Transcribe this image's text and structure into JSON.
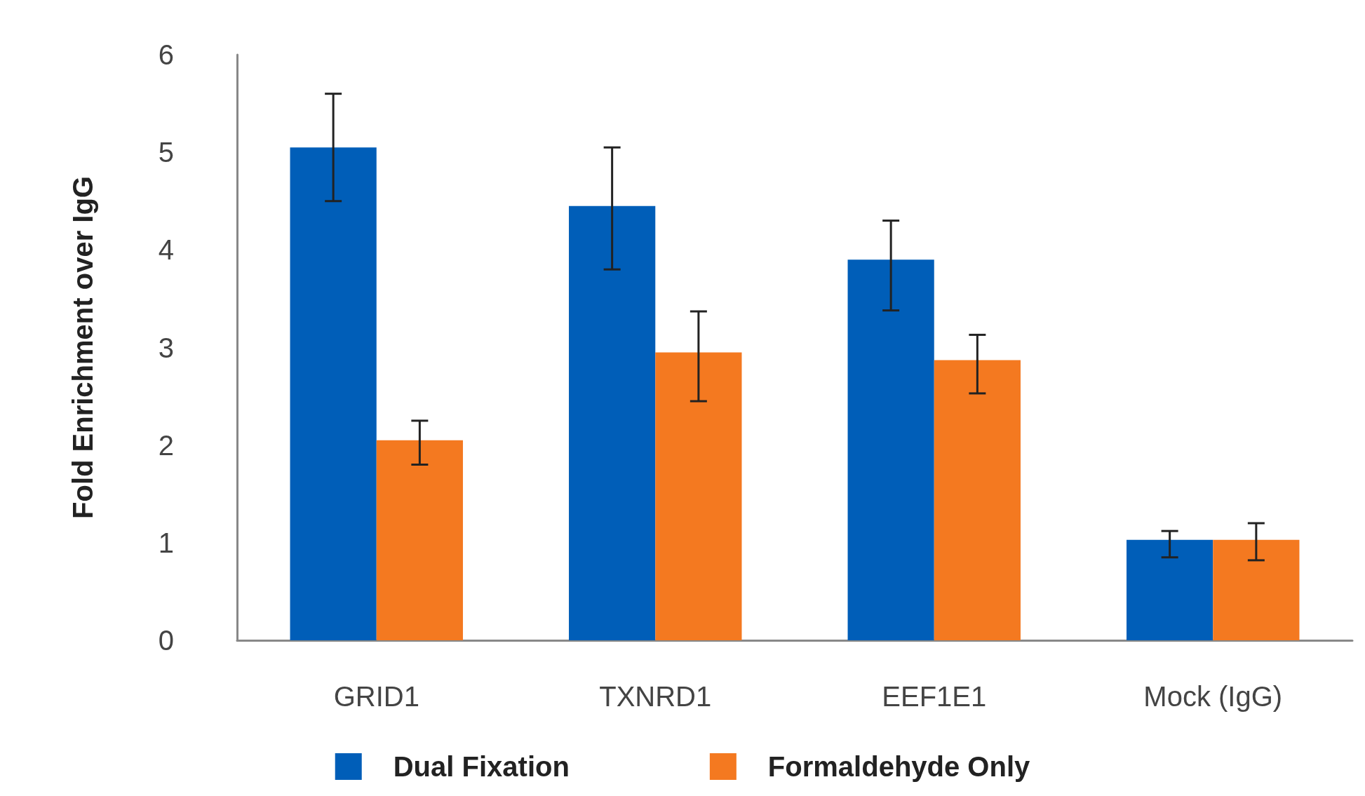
{
  "chart_data": {
    "type": "bar",
    "ylabel": "Fold Enrichment over IgG",
    "categories": [
      "GRID1",
      "TXNRD1",
      "EEF1E1",
      "Mock (IgG)"
    ],
    "series": [
      {
        "name": "Dual Fixation",
        "color": "#005eb8",
        "values": [
          5.05,
          4.45,
          3.9,
          1.03
        ],
        "errors": [
          [
            4.5,
            5.6
          ],
          [
            3.8,
            5.05
          ],
          [
            3.38,
            4.3
          ],
          [
            0.85,
            1.12
          ]
        ]
      },
      {
        "name": "Formaldehyde Only",
        "color": "#f47920",
        "values": [
          2.05,
          2.95,
          2.87,
          1.03
        ],
        "errors": [
          [
            1.8,
            2.25
          ],
          [
            2.45,
            3.37
          ],
          [
            2.53,
            3.13
          ],
          [
            0.82,
            1.2
          ]
        ]
      }
    ],
    "ylim": [
      0,
      6
    ],
    "yticks": [
      0,
      1,
      2,
      3,
      4,
      5,
      6
    ],
    "grid": false,
    "legend": "bottom"
  }
}
